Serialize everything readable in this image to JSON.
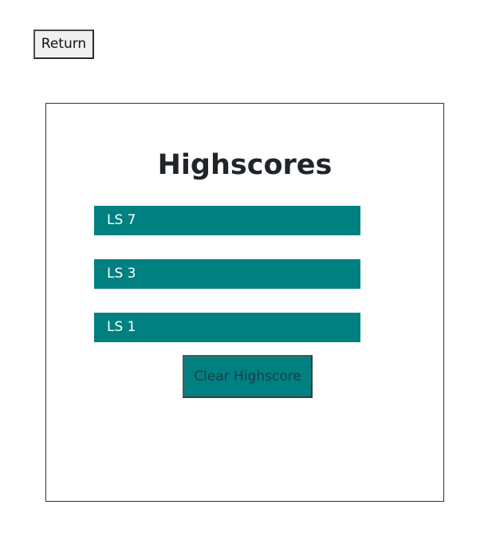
{
  "header": {
    "return_label": "Return"
  },
  "panel": {
    "title": "Highscores",
    "scores": [
      {
        "label": "LS 7"
      },
      {
        "label": "LS 3"
      },
      {
        "label": "LS 1"
      }
    ],
    "clear_label": "Clear Highscore"
  },
  "colors": {
    "accent": "#008080",
    "text": "#212529",
    "border": "#333333"
  }
}
